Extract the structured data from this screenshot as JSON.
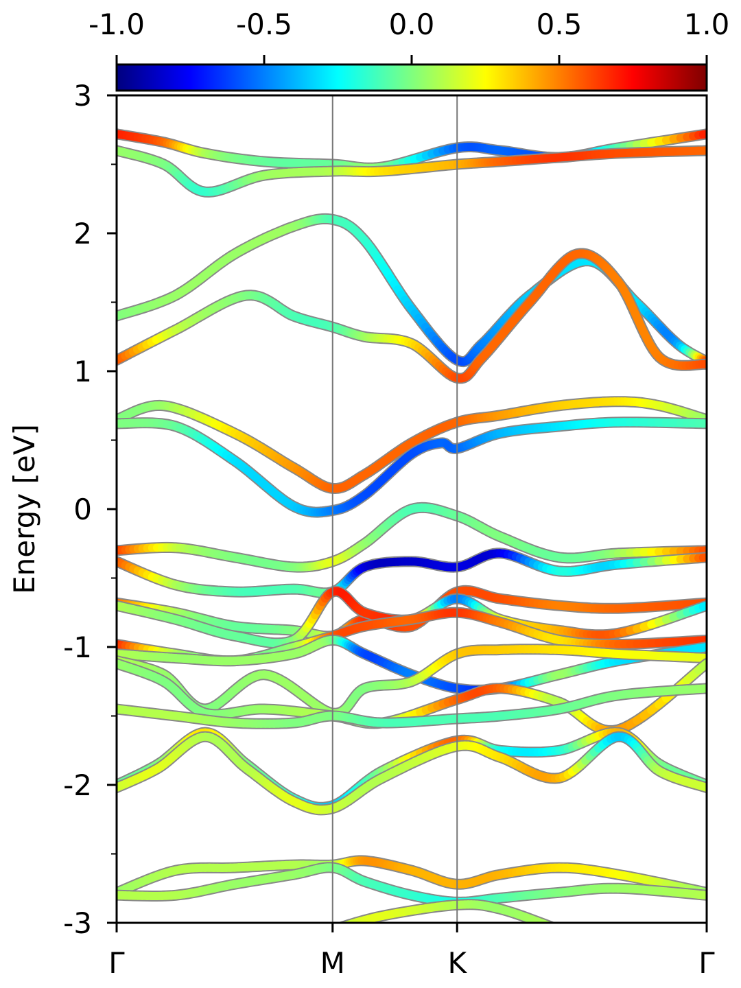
{
  "chart_data": {
    "type": "line",
    "title": "",
    "xlabel": "",
    "ylabel": "Energy [eV]",
    "ylim": [
      -3,
      3
    ],
    "x_range": [
      0,
      1
    ],
    "y_ticks": [
      "-3",
      "-2",
      "-1",
      "0",
      "1",
      "2",
      "3"
    ],
    "y_tick_values": [
      -3,
      -2,
      -1,
      0,
      1,
      2,
      3
    ],
    "y_minor_ticks": [
      -2.5,
      -1.5,
      -0.5,
      0.5,
      1.5,
      2.5
    ],
    "k_path": [
      {
        "label": "Γ",
        "x": 0.0
      },
      {
        "label": "M",
        "x": 0.366
      },
      {
        "label": "K",
        "x": 0.577
      },
      {
        "label": "Γ",
        "x": 1.0
      }
    ],
    "grid": false,
    "legend": "none",
    "colorbar": {
      "colormap": "jet",
      "range": [
        -1.0,
        1.0
      ],
      "tick_labels": [
        "-1.0",
        "-0.5",
        "0.0",
        "0.5",
        "1.0"
      ],
      "tick_values": [
        -1.0,
        -0.5,
        0.0,
        0.5,
        1.0
      ],
      "location": "top"
    },
    "series": [
      {
        "x": [
          0.0,
          0.08,
          0.15,
          0.25,
          0.366,
          0.45,
          0.577,
          0.65,
          0.75,
          0.85,
          1.0
        ],
        "y": [
          2.72,
          2.66,
          2.58,
          2.52,
          2.5,
          2.48,
          2.62,
          2.6,
          2.55,
          2.62,
          2.72
        ],
        "c": [
          0.7,
          0.55,
          0.1,
          -0.05,
          -0.05,
          0.0,
          -0.55,
          -0.55,
          -0.55,
          -0.1,
          0.7
        ]
      },
      {
        "x": [
          0.0,
          0.08,
          0.15,
          0.25,
          0.366,
          0.45,
          0.577,
          0.65,
          0.75,
          0.85,
          1.0
        ],
        "y": [
          2.6,
          2.5,
          2.3,
          2.42,
          2.45,
          2.45,
          2.5,
          2.52,
          2.55,
          2.58,
          2.6
        ],
        "c": [
          0.05,
          0.0,
          -0.15,
          0.05,
          0.1,
          0.3,
          0.4,
          0.55,
          0.65,
          0.6,
          0.55
        ]
      },
      {
        "x": [
          0.0,
          0.1,
          0.2,
          0.3,
          0.366,
          0.42,
          0.5,
          0.577,
          0.62,
          0.7,
          0.8,
          0.88,
          0.95,
          1.0
        ],
        "y": [
          1.4,
          1.55,
          1.85,
          2.05,
          2.1,
          1.95,
          1.45,
          1.08,
          1.2,
          1.55,
          1.8,
          1.5,
          1.2,
          1.07
        ],
        "c": [
          0.0,
          0.05,
          0.05,
          0.05,
          -0.1,
          -0.15,
          -0.35,
          -0.6,
          -0.5,
          -0.35,
          -0.3,
          -0.3,
          -0.45,
          0.6
        ]
      },
      {
        "x": [
          0.0,
          0.1,
          0.22,
          0.3,
          0.366,
          0.42,
          0.5,
          0.577,
          0.62,
          0.7,
          0.78,
          0.85,
          0.92,
          1.0
        ],
        "y": [
          1.08,
          1.3,
          1.55,
          1.4,
          1.32,
          1.25,
          1.2,
          0.95,
          1.1,
          1.5,
          1.85,
          1.65,
          1.1,
          1.05
        ],
        "c": [
          0.6,
          0.15,
          0.0,
          -0.1,
          -0.1,
          0.05,
          0.3,
          0.6,
          0.55,
          0.55,
          0.55,
          0.5,
          0.5,
          0.6
        ]
      },
      {
        "x": [
          0.0,
          0.08,
          0.2,
          0.3,
          0.366,
          0.42,
          0.5,
          0.577,
          0.65,
          0.75,
          0.85,
          0.92,
          1.0
        ],
        "y": [
          0.65,
          0.75,
          0.55,
          0.3,
          0.15,
          0.25,
          0.48,
          0.63,
          0.68,
          0.75,
          0.78,
          0.75,
          0.65
        ],
        "c": [
          0.0,
          0.05,
          0.3,
          0.45,
          0.55,
          0.55,
          0.55,
          0.55,
          0.45,
          0.35,
          0.3,
          0.2,
          0.05
        ]
      },
      {
        "x": [
          0.0,
          0.1,
          0.2,
          0.3,
          0.366,
          0.42,
          0.5,
          0.55,
          0.577,
          0.65,
          0.75,
          0.85,
          1.0
        ],
        "y": [
          0.62,
          0.6,
          0.35,
          0.02,
          -0.01,
          0.1,
          0.4,
          0.48,
          0.44,
          0.55,
          0.6,
          0.63,
          0.62
        ],
        "c": [
          0.0,
          -0.05,
          -0.3,
          -0.35,
          -0.5,
          -0.6,
          -0.6,
          -0.55,
          -0.55,
          -0.4,
          -0.3,
          -0.2,
          -0.1
        ]
      },
      {
        "x": [
          0.0,
          0.1,
          0.2,
          0.3,
          0.366,
          0.42,
          0.5,
          0.577,
          0.65,
          0.75,
          0.85,
          1.0
        ],
        "y": [
          -0.3,
          -0.28,
          -0.35,
          -0.42,
          -0.38,
          -0.25,
          0.0,
          -0.05,
          -0.2,
          -0.35,
          -0.32,
          -0.3
        ],
        "c": [
          0.65,
          0.15,
          0.0,
          0.0,
          0.2,
          0.05,
          -0.1,
          -0.05,
          0.0,
          -0.05,
          0.05,
          0.6
        ]
      },
      {
        "x": [
          0.0,
          0.1,
          0.2,
          0.3,
          0.366,
          0.42,
          0.5,
          0.577,
          0.65,
          0.75,
          0.85,
          1.0
        ],
        "y": [
          -0.38,
          -0.55,
          -0.6,
          -0.58,
          -0.6,
          -0.42,
          -0.38,
          -0.42,
          -0.32,
          -0.45,
          -0.4,
          -0.35
        ],
        "c": [
          0.6,
          0.1,
          -0.1,
          -0.1,
          -0.1,
          -0.8,
          -0.85,
          -0.8,
          -0.8,
          -0.2,
          -0.3,
          0.6
        ]
      },
      {
        "x": [
          0.0,
          0.1,
          0.2,
          0.3,
          0.366,
          0.42,
          0.5,
          0.577,
          0.65,
          0.75,
          0.85,
          1.0
        ],
        "y": [
          -0.68,
          -0.75,
          -0.85,
          -0.88,
          -0.92,
          -0.8,
          -0.85,
          -0.6,
          -0.65,
          -0.7,
          -0.72,
          -0.68
        ],
        "c": [
          0.55,
          0.1,
          -0.05,
          0.0,
          0.2,
          0.65,
          0.6,
          0.6,
          0.6,
          0.5,
          0.55,
          0.6
        ]
      },
      {
        "x": [
          0.0,
          0.1,
          0.2,
          0.3,
          0.366,
          0.42,
          0.5,
          0.577,
          0.65,
          0.75,
          0.85,
          1.0
        ],
        "y": [
          -0.7,
          -0.8,
          -0.92,
          -0.95,
          -0.6,
          -0.75,
          -0.8,
          -0.65,
          -0.8,
          -0.88,
          -0.9,
          -0.7
        ],
        "c": [
          0.1,
          0.0,
          -0.05,
          0.0,
          0.65,
          0.65,
          0.55,
          -0.5,
          0.2,
          0.4,
          0.55,
          -0.3
        ]
      },
      {
        "x": [
          0.0,
          0.1,
          0.2,
          0.3,
          0.366,
          0.42,
          0.5,
          0.577,
          0.65,
          0.75,
          0.85,
          1.0
        ],
        "y": [
          -0.98,
          -1.05,
          -1.1,
          -1.0,
          -0.92,
          -0.85,
          -0.8,
          -0.75,
          -0.82,
          -0.95,
          -0.98,
          -0.95
        ],
        "c": [
          0.7,
          0.1,
          0.0,
          0.05,
          0.55,
          0.6,
          0.55,
          0.65,
          0.5,
          0.3,
          0.55,
          0.65
        ]
      },
      {
        "x": [
          0.0,
          0.1,
          0.2,
          0.3,
          0.366,
          0.42,
          0.5,
          0.577,
          0.65,
          0.75,
          0.85,
          1.0
        ],
        "y": [
          -1.05,
          -1.08,
          -1.1,
          -1.05,
          -0.95,
          -1.05,
          -1.2,
          -1.3,
          -1.3,
          -1.2,
          -1.1,
          -1.0
        ],
        "c": [
          0.1,
          0.05,
          0.05,
          0.05,
          0.0,
          -0.6,
          -0.5,
          -0.6,
          -0.6,
          0.05,
          -0.3,
          -0.3
        ]
      },
      {
        "x": [
          0.0,
          0.08,
          0.15,
          0.25,
          0.366,
          0.42,
          0.5,
          0.577,
          0.65,
          0.75,
          0.85,
          1.0
        ],
        "y": [
          -1.1,
          -1.2,
          -1.45,
          -1.2,
          -1.48,
          -1.3,
          -1.25,
          -1.05,
          -1.02,
          -1.02,
          -1.05,
          -1.08
        ],
        "c": [
          0.1,
          0.05,
          0.0,
          0.05,
          0.05,
          0.0,
          0.1,
          0.35,
          0.35,
          0.3,
          0.25,
          0.2
        ]
      },
      {
        "x": [
          0.0,
          0.08,
          0.15,
          0.25,
          0.366,
          0.45,
          0.577,
          0.65,
          0.75,
          0.85,
          1.0
        ],
        "y": [
          -1.12,
          -1.25,
          -1.48,
          -1.45,
          -1.5,
          -1.55,
          -1.38,
          -1.3,
          -1.4,
          -1.6,
          -1.12
        ],
        "c": [
          0.05,
          0.0,
          0.0,
          0.05,
          0.1,
          0.05,
          0.55,
          0.55,
          0.1,
          0.45,
          0.1
        ]
      },
      {
        "x": [
          0.0,
          0.1,
          0.2,
          0.3,
          0.366,
          0.45,
          0.577,
          0.65,
          0.75,
          0.85,
          1.0
        ],
        "y": [
          -1.45,
          -1.5,
          -1.55,
          -1.55,
          -1.5,
          -1.55,
          -1.52,
          -1.5,
          -1.45,
          -1.35,
          -1.3
        ],
        "c": [
          0.1,
          0.1,
          0.05,
          0.0,
          0.0,
          -0.1,
          -0.1,
          -0.1,
          -0.05,
          0.0,
          0.05
        ]
      },
      {
        "x": [
          0.0,
          0.07,
          0.15,
          0.22,
          0.3,
          0.366,
          0.45,
          0.577,
          0.65,
          0.75,
          0.85,
          0.92,
          1.0
        ],
        "y": [
          -2.0,
          -1.85,
          -1.62,
          -1.85,
          -2.1,
          -2.15,
          -1.9,
          -1.68,
          -1.75,
          -1.75,
          -1.62,
          -1.85,
          -2.0
        ],
        "c": [
          -0.05,
          0.0,
          0.3,
          0.0,
          -0.15,
          -0.35,
          0.0,
          0.55,
          -0.2,
          -0.2,
          0.4,
          0.0,
          -0.05
        ]
      },
      {
        "x": [
          0.0,
          0.07,
          0.15,
          0.22,
          0.3,
          0.366,
          0.45,
          0.577,
          0.65,
          0.75,
          0.85,
          0.92,
          1.0
        ],
        "y": [
          -2.02,
          -1.88,
          -1.65,
          -1.88,
          -2.12,
          -2.17,
          -1.95,
          -1.72,
          -1.8,
          -1.95,
          -1.65,
          -1.9,
          -2.02
        ],
        "c": [
          0.15,
          0.2,
          0.1,
          0.1,
          0.2,
          0.15,
          0.1,
          0.2,
          0.3,
          0.4,
          -0.35,
          0.1,
          0.15
        ]
      },
      {
        "x": [
          0.0,
          0.1,
          0.2,
          0.3,
          0.366,
          0.42,
          0.5,
          0.577,
          0.65,
          0.75,
          0.85,
          1.0
        ],
        "y": [
          -2.78,
          -2.62,
          -2.6,
          -2.58,
          -2.58,
          -2.55,
          -2.62,
          -2.72,
          -2.65,
          -2.6,
          -2.65,
          -2.78
        ],
        "c": [
          0.05,
          0.1,
          0.1,
          0.1,
          0.1,
          0.45,
          0.4,
          0.4,
          0.4,
          0.3,
          0.25,
          0.05
        ]
      },
      {
        "x": [
          0.0,
          0.1,
          0.2,
          0.3,
          0.366,
          0.42,
          0.5,
          0.577,
          0.65,
          0.75,
          0.85,
          1.0
        ],
        "y": [
          -2.8,
          -2.8,
          -2.72,
          -2.65,
          -2.6,
          -2.7,
          -2.8,
          -2.85,
          -2.82,
          -2.78,
          -2.75,
          -2.8
        ],
        "c": [
          0.1,
          0.1,
          0.05,
          0.05,
          0.0,
          -0.1,
          -0.15,
          -0.2,
          -0.1,
          0.0,
          0.05,
          0.1
        ]
      },
      {
        "x": [
          0.366,
          0.45,
          0.577,
          0.65,
          0.75
        ],
        "y": [
          -3.05,
          -2.95,
          -2.87,
          -2.9,
          -3.05
        ],
        "c": [
          0.1,
          0.2,
          0.1,
          0.05,
          0.1
        ]
      }
    ]
  }
}
